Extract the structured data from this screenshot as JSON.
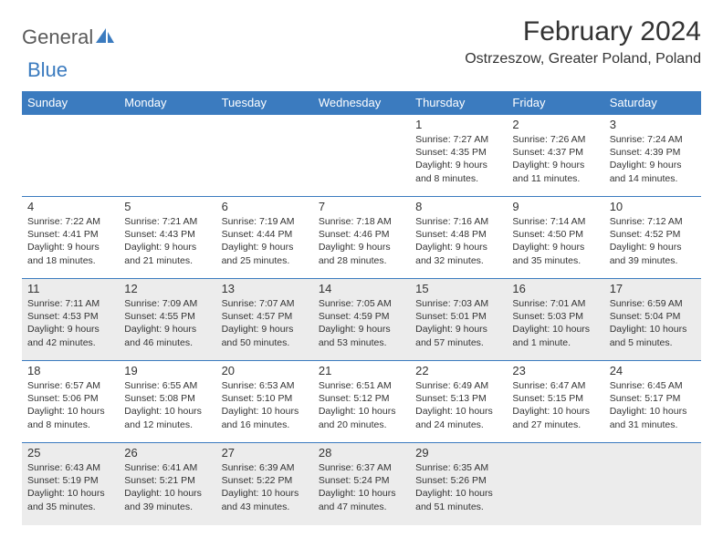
{
  "logo": {
    "text_general": "General",
    "text_blue": "Blue",
    "shape_color": "#3b7bbf"
  },
  "title": "February 2024",
  "location": "Ostrzeszow, Greater Poland, Poland",
  "colors": {
    "header_bg": "#3b7bbf",
    "header_text": "#ffffff",
    "cell_border": "#3b7bbf",
    "shaded_bg": "#ececec",
    "text": "#333333",
    "logo_gray": "#5a5a5a"
  },
  "day_headers": [
    "Sunday",
    "Monday",
    "Tuesday",
    "Wednesday",
    "Thursday",
    "Friday",
    "Saturday"
  ],
  "weeks": [
    {
      "shaded": false,
      "days": [
        null,
        null,
        null,
        null,
        {
          "num": "1",
          "sunrise": "7:27 AM",
          "sunset": "4:35 PM",
          "daylight": "9 hours and 8 minutes."
        },
        {
          "num": "2",
          "sunrise": "7:26 AM",
          "sunset": "4:37 PM",
          "daylight": "9 hours and 11 minutes."
        },
        {
          "num": "3",
          "sunrise": "7:24 AM",
          "sunset": "4:39 PM",
          "daylight": "9 hours and 14 minutes."
        }
      ]
    },
    {
      "shaded": false,
      "days": [
        {
          "num": "4",
          "sunrise": "7:22 AM",
          "sunset": "4:41 PM",
          "daylight": "9 hours and 18 minutes."
        },
        {
          "num": "5",
          "sunrise": "7:21 AM",
          "sunset": "4:43 PM",
          "daylight": "9 hours and 21 minutes."
        },
        {
          "num": "6",
          "sunrise": "7:19 AM",
          "sunset": "4:44 PM",
          "daylight": "9 hours and 25 minutes."
        },
        {
          "num": "7",
          "sunrise": "7:18 AM",
          "sunset": "4:46 PM",
          "daylight": "9 hours and 28 minutes."
        },
        {
          "num": "8",
          "sunrise": "7:16 AM",
          "sunset": "4:48 PM",
          "daylight": "9 hours and 32 minutes."
        },
        {
          "num": "9",
          "sunrise": "7:14 AM",
          "sunset": "4:50 PM",
          "daylight": "9 hours and 35 minutes."
        },
        {
          "num": "10",
          "sunrise": "7:12 AM",
          "sunset": "4:52 PM",
          "daylight": "9 hours and 39 minutes."
        }
      ]
    },
    {
      "shaded": true,
      "days": [
        {
          "num": "11",
          "sunrise": "7:11 AM",
          "sunset": "4:53 PM",
          "daylight": "9 hours and 42 minutes."
        },
        {
          "num": "12",
          "sunrise": "7:09 AM",
          "sunset": "4:55 PM",
          "daylight": "9 hours and 46 minutes."
        },
        {
          "num": "13",
          "sunrise": "7:07 AM",
          "sunset": "4:57 PM",
          "daylight": "9 hours and 50 minutes."
        },
        {
          "num": "14",
          "sunrise": "7:05 AM",
          "sunset": "4:59 PM",
          "daylight": "9 hours and 53 minutes."
        },
        {
          "num": "15",
          "sunrise": "7:03 AM",
          "sunset": "5:01 PM",
          "daylight": "9 hours and 57 minutes."
        },
        {
          "num": "16",
          "sunrise": "7:01 AM",
          "sunset": "5:03 PM",
          "daylight": "10 hours and 1 minute."
        },
        {
          "num": "17",
          "sunrise": "6:59 AM",
          "sunset": "5:04 PM",
          "daylight": "10 hours and 5 minutes."
        }
      ]
    },
    {
      "shaded": false,
      "days": [
        {
          "num": "18",
          "sunrise": "6:57 AM",
          "sunset": "5:06 PM",
          "daylight": "10 hours and 8 minutes."
        },
        {
          "num": "19",
          "sunrise": "6:55 AM",
          "sunset": "5:08 PM",
          "daylight": "10 hours and 12 minutes."
        },
        {
          "num": "20",
          "sunrise": "6:53 AM",
          "sunset": "5:10 PM",
          "daylight": "10 hours and 16 minutes."
        },
        {
          "num": "21",
          "sunrise": "6:51 AM",
          "sunset": "5:12 PM",
          "daylight": "10 hours and 20 minutes."
        },
        {
          "num": "22",
          "sunrise": "6:49 AM",
          "sunset": "5:13 PM",
          "daylight": "10 hours and 24 minutes."
        },
        {
          "num": "23",
          "sunrise": "6:47 AM",
          "sunset": "5:15 PM",
          "daylight": "10 hours and 27 minutes."
        },
        {
          "num": "24",
          "sunrise": "6:45 AM",
          "sunset": "5:17 PM",
          "daylight": "10 hours and 31 minutes."
        }
      ]
    },
    {
      "shaded": true,
      "days": [
        {
          "num": "25",
          "sunrise": "6:43 AM",
          "sunset": "5:19 PM",
          "daylight": "10 hours and 35 minutes."
        },
        {
          "num": "26",
          "sunrise": "6:41 AM",
          "sunset": "5:21 PM",
          "daylight": "10 hours and 39 minutes."
        },
        {
          "num": "27",
          "sunrise": "6:39 AM",
          "sunset": "5:22 PM",
          "daylight": "10 hours and 43 minutes."
        },
        {
          "num": "28",
          "sunrise": "6:37 AM",
          "sunset": "5:24 PM",
          "daylight": "10 hours and 47 minutes."
        },
        {
          "num": "29",
          "sunrise": "6:35 AM",
          "sunset": "5:26 PM",
          "daylight": "10 hours and 51 minutes."
        },
        null,
        null
      ]
    }
  ],
  "labels": {
    "sunrise_prefix": "Sunrise: ",
    "sunset_prefix": "Sunset: ",
    "daylight_prefix": "Daylight: "
  }
}
